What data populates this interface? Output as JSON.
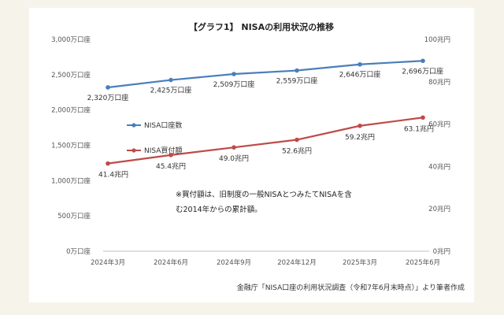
{
  "chart_data": {
    "type": "line",
    "title": "【グラフ1】 NISAの利用状況の推移",
    "categories": [
      "2024年3月",
      "2024年6月",
      "2024年9月",
      "2024年12月",
      "2025年3月",
      "2025年6月"
    ],
    "series": [
      {
        "name": "NISA口座数",
        "axis": "left",
        "color": "#4a7ebb",
        "values": [
          2320,
          2425,
          2509,
          2559,
          2646,
          2696
        ],
        "labels": [
          "2,320万口座",
          "2,425万口座",
          "2,509万口座",
          "2,559万口座",
          "2,646万口座",
          "2,696万口座"
        ]
      },
      {
        "name": "NISA買付額",
        "axis": "right",
        "color": "#be4b48",
        "values": [
          41.4,
          45.4,
          49.0,
          52.6,
          59.2,
          63.1
        ],
        "labels": [
          "41.4兆円",
          "45.4兆円",
          "49.0兆円",
          "52.6兆円",
          "59.2兆円",
          "63.1兆円"
        ]
      }
    ],
    "y_left": {
      "lim": [
        0,
        3000
      ],
      "ticks": [
        0,
        500,
        1000,
        1500,
        2000,
        2500,
        3000
      ],
      "tick_labels": [
        "0万口座",
        "500万口座",
        "1,000万口座",
        "1,500万口座",
        "2,000万口座",
        "2,500万口座",
        "3,000万口座"
      ]
    },
    "y_right": {
      "lim": [
        0,
        100
      ],
      "ticks": [
        0,
        20,
        40,
        60,
        80,
        100
      ],
      "tick_labels": [
        "0兆円",
        "20兆円",
        "40兆円",
        "60兆円",
        "80兆円",
        "100兆円"
      ]
    },
    "grid": false,
    "legend_position": "left",
    "annotation": [
      "※買付額は、旧制度の一般NISAとつみたてNISAを含",
      "む2014年からの累計額。"
    ],
    "source": "金融庁「NISA口座の利用状況調査（令和7年6月末時点）」より筆者作成"
  },
  "colors": {
    "page_background": "#f6f4ea",
    "card_background": "#ffffff"
  }
}
